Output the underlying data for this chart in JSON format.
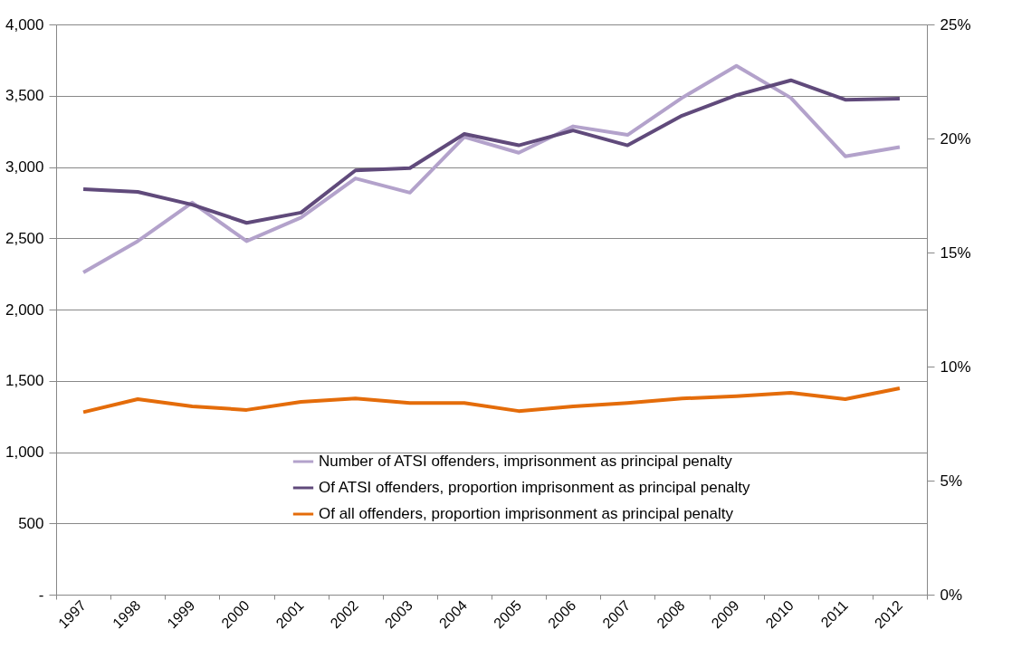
{
  "chart_data": {
    "type": "line",
    "categories": [
      "1997",
      "1998",
      "1999",
      "2000",
      "2001",
      "2002",
      "2003",
      "2004",
      "2005",
      "2006",
      "2007",
      "2008",
      "2009",
      "2010",
      "2011",
      "2012"
    ],
    "series": [
      {
        "name": "Number of ATSI offenders, imprisonment as principal penalty",
        "color": "#b3a2cb",
        "values": [
          2260,
          2480,
          2750,
          2480,
          2645,
          2920,
          2820,
          3210,
          3100,
          3285,
          3225,
          3485,
          3710,
          3485,
          3075,
          3140
        ]
      },
      {
        "name": "Of ATSI offenders, proportion imprisonment as principal penalty",
        "color": "#604a7b",
        "axis": "y2",
        "values": [
          17.78,
          17.66,
          17.1,
          16.3,
          16.75,
          18.6,
          18.7,
          20.2,
          19.7,
          20.35,
          19.7,
          21.0,
          21.9,
          22.55,
          21.7,
          21.75
        ]
      },
      {
        "name": "Of all offenders, proportion imprisonment as principal penalty",
        "color": "#e46c0a",
        "axis": "y2",
        "values": [
          8.0,
          8.57,
          8.25,
          8.1,
          8.45,
          8.6,
          8.4,
          8.4,
          8.05,
          8.25,
          8.4,
          8.6,
          8.7,
          8.85,
          8.57,
          9.05
        ]
      }
    ],
    "ylim": [
      0,
      4000
    ],
    "yticks": [
      {
        "value": 0,
        "label": "-"
      },
      {
        "value": 500,
        "label": "500"
      },
      {
        "value": 1000,
        "label": "1,000"
      },
      {
        "value": 1500,
        "label": "1,500"
      },
      {
        "value": 2000,
        "label": "2,000"
      },
      {
        "value": 2500,
        "label": "2,500"
      },
      {
        "value": 3000,
        "label": "3,000"
      },
      {
        "value": 3500,
        "label": "3,500"
      },
      {
        "value": 4000,
        "label": "4,000"
      }
    ],
    "y2lim": [
      0,
      25
    ],
    "y2ticks": [
      {
        "value": 0,
        "label": "0%"
      },
      {
        "value": 5,
        "label": "5%"
      },
      {
        "value": 10,
        "label": "10%"
      },
      {
        "value": 15,
        "label": "15%"
      },
      {
        "value": 20,
        "label": "20%"
      },
      {
        "value": 25,
        "label": "25%"
      }
    ],
    "grid": "y",
    "legend": "bottom",
    "marker": "none",
    "line_style": "solid"
  }
}
